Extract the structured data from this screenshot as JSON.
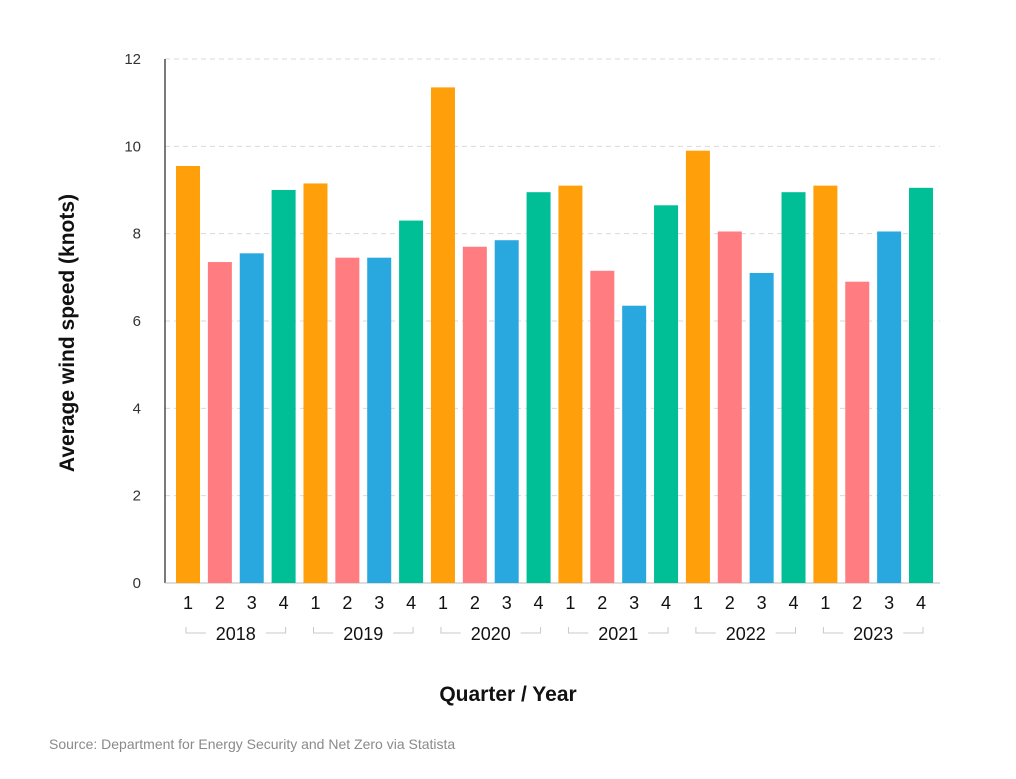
{
  "chart_data": {
    "type": "bar",
    "xlabel": "Quarter / Year",
    "ylabel": "Average wind speed (knots)",
    "ylim": [
      0,
      12
    ],
    "yticks": [
      0,
      2,
      4,
      6,
      8,
      10,
      12
    ],
    "grid": true,
    "legend": "none",
    "quarters": [
      "1",
      "2",
      "3",
      "4"
    ],
    "groups": [
      {
        "year": "2018",
        "values": [
          9.55,
          7.35,
          7.55,
          9.0
        ]
      },
      {
        "year": "2019",
        "values": [
          9.15,
          7.45,
          7.45,
          8.3
        ]
      },
      {
        "year": "2020",
        "values": [
          11.35,
          7.7,
          7.85,
          8.95
        ]
      },
      {
        "year": "2021",
        "values": [
          9.1,
          7.15,
          6.35,
          8.65
        ]
      },
      {
        "year": "2022",
        "values": [
          9.9,
          8.05,
          7.1,
          8.95
        ]
      },
      {
        "year": "2023",
        "values": [
          9.1,
          6.9,
          8.05,
          9.05
        ]
      }
    ],
    "quarter_colors": [
      "#FF9F0A",
      "#FF7C80",
      "#29A8E0",
      "#00BF96"
    ]
  },
  "source": "Source: Department for Energy Security and Net Zero via Statista"
}
